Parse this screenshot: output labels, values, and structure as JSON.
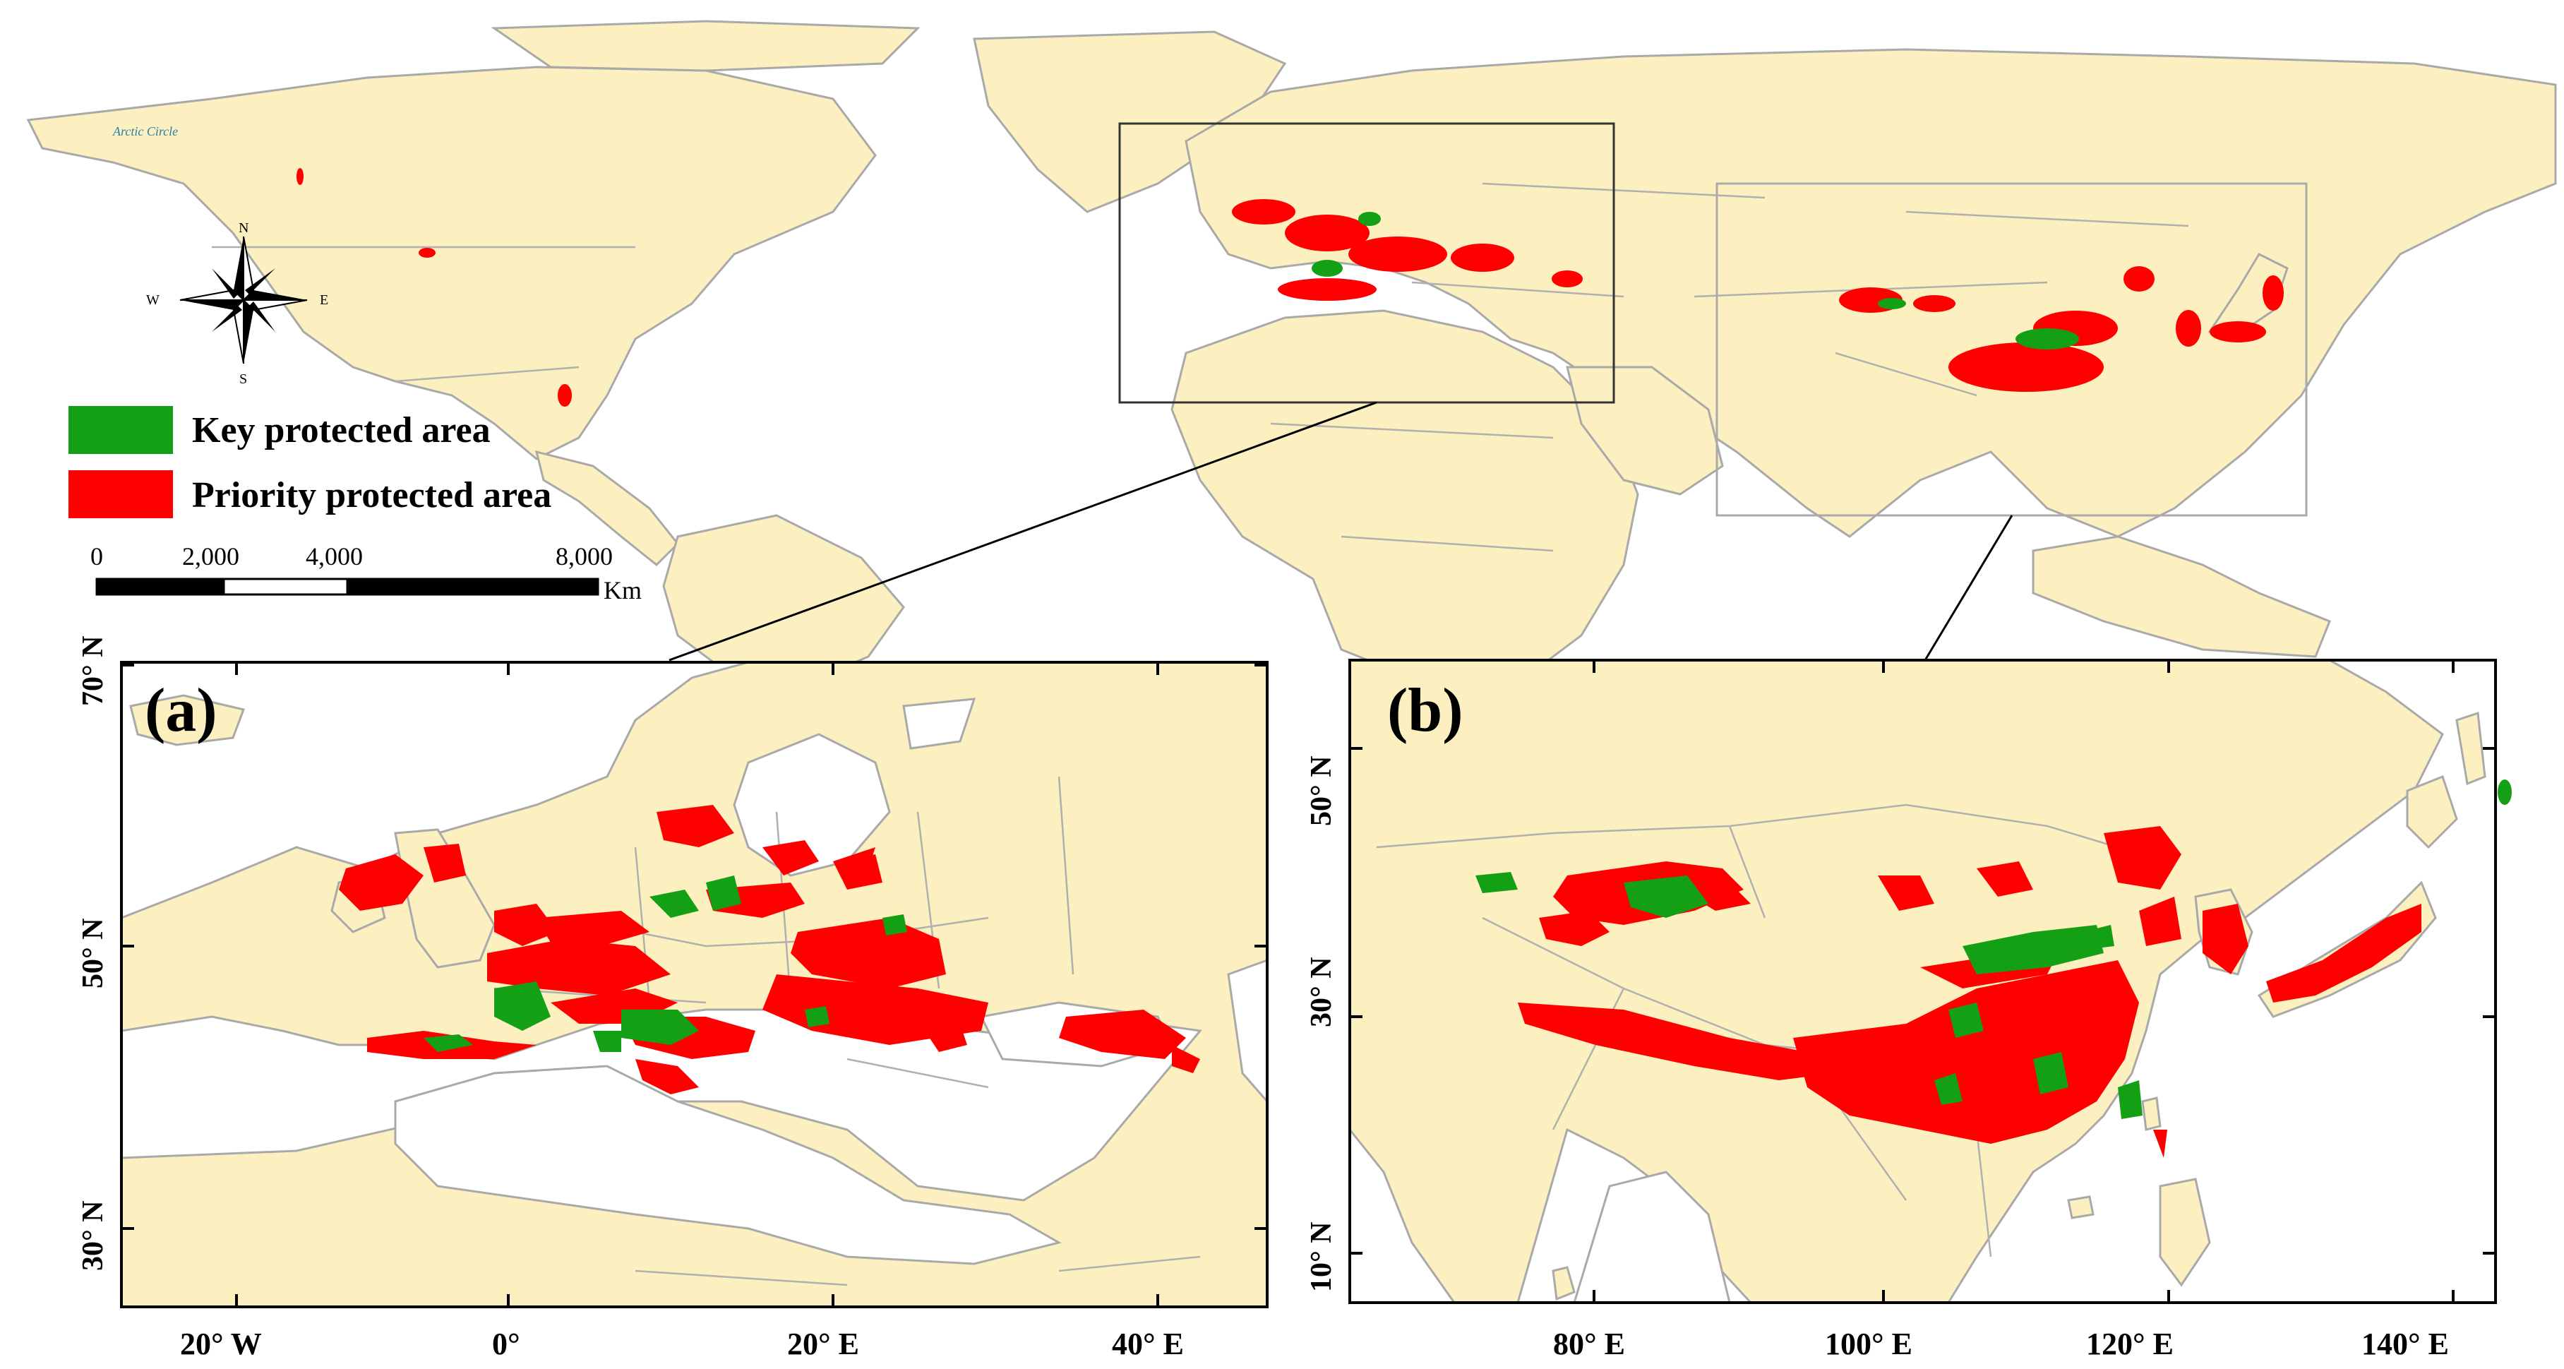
{
  "legend": {
    "items": [
      {
        "label": "Key protected area",
        "color": "#14a014"
      },
      {
        "label": "Priority protected area",
        "color": "#ff0000"
      }
    ]
  },
  "scale_bar": {
    "ticks": [
      "0",
      "2,000",
      "4,000",
      "8,000"
    ],
    "unit": "Km"
  },
  "compass": {
    "n": "N",
    "s": "S",
    "e": "E",
    "w": "W"
  },
  "arctic_label": "Arctic Circle",
  "panel_a": {
    "label": "(a)",
    "lat_labels": [
      "70° N",
      "50° N",
      "30° N"
    ],
    "lon_labels": [
      "20° W",
      "0°",
      "20° E",
      "40° E"
    ]
  },
  "panel_b": {
    "label": "(b)",
    "lat_labels": [
      "50° N",
      "30° N",
      "10° N"
    ],
    "lon_labels": [
      "80° E",
      "100° E",
      "120° E",
      "140° E"
    ]
  }
}
